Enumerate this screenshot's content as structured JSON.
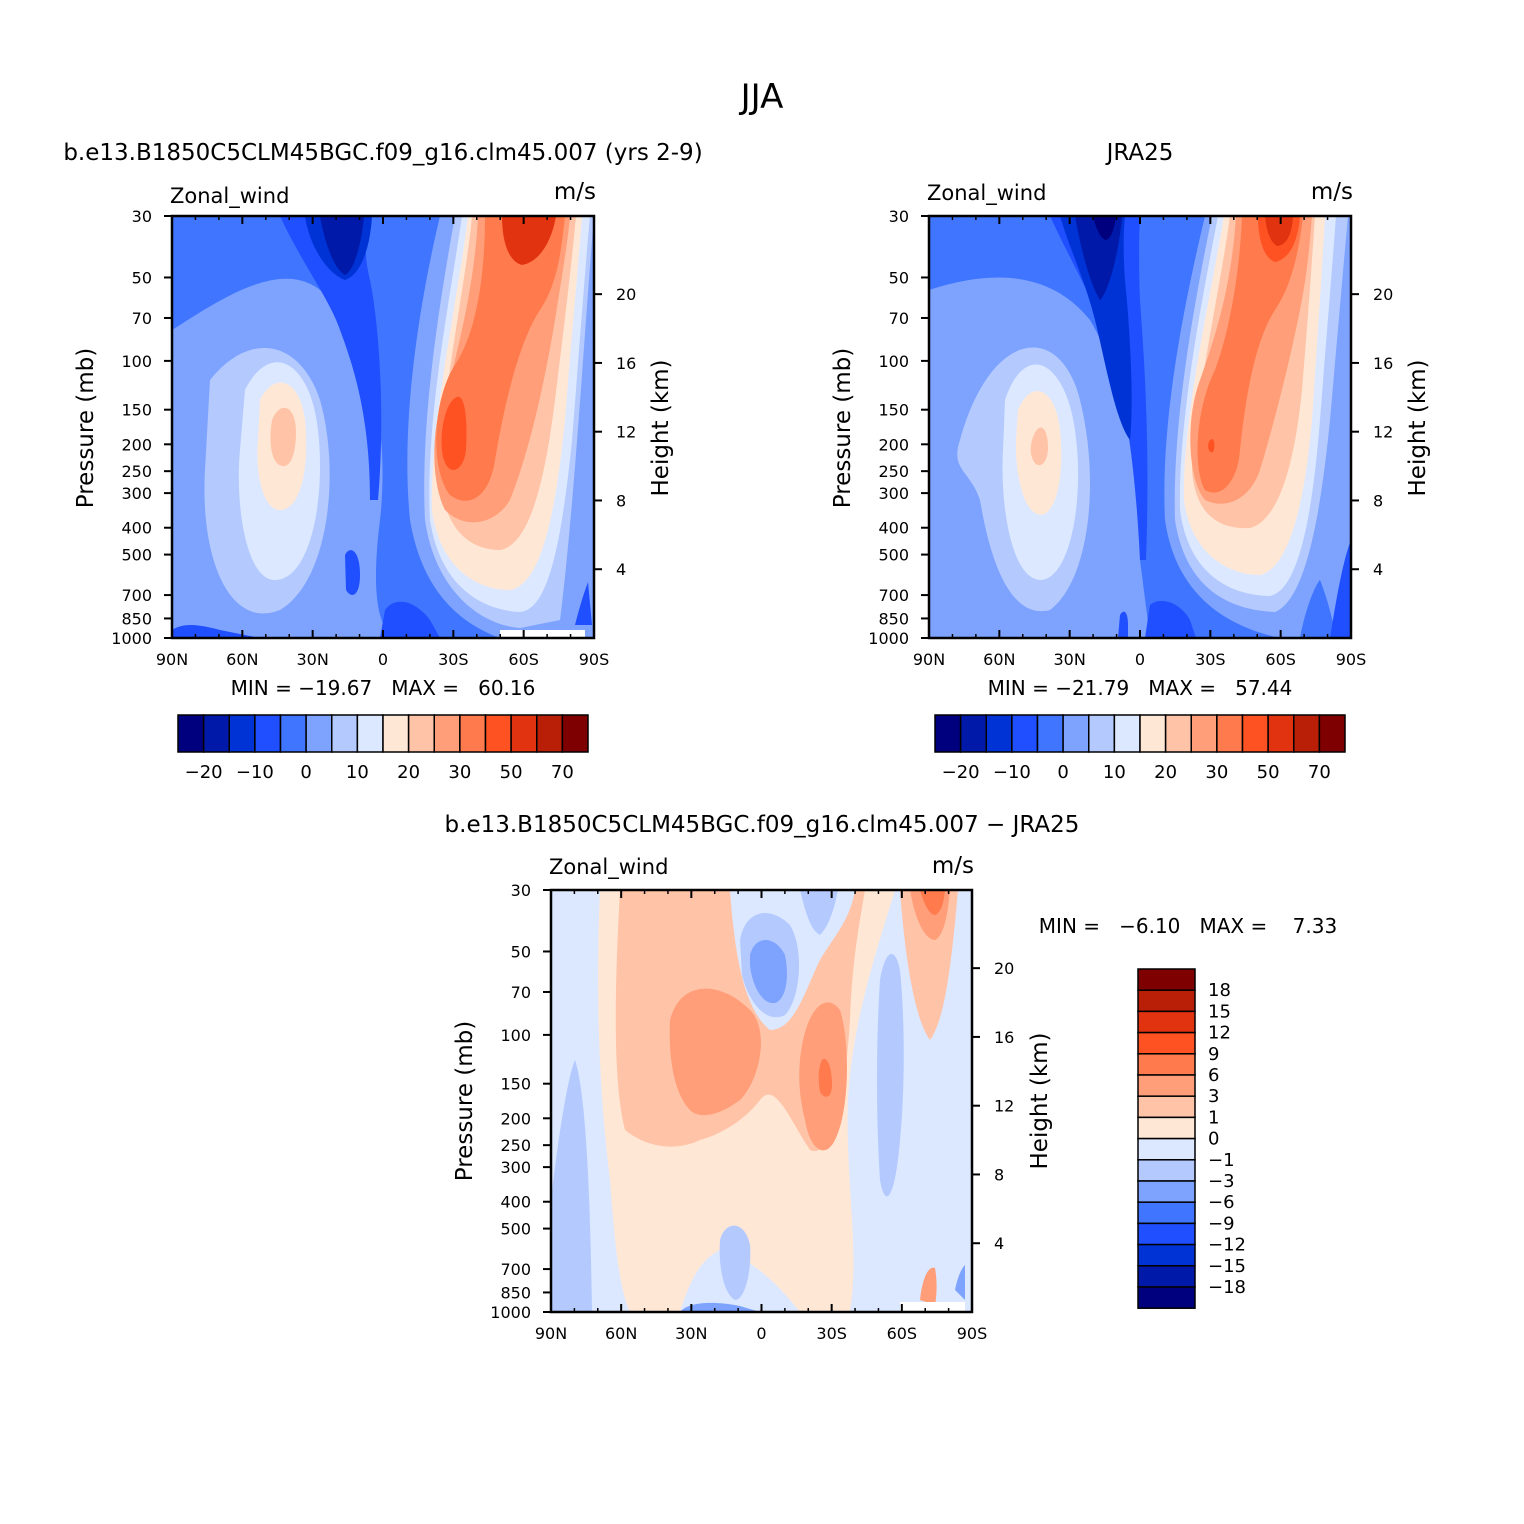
{
  "figure": {
    "title": "JJA",
    "colors": {
      "main_scale": [
        "#00007f",
        "#0019a8",
        "#0033d6",
        "#1f4fff",
        "#3f75ff",
        "#7ea3ff",
        "#b4caff",
        "#dce8ff",
        "#ffe7d6",
        "#ffc4a8",
        "#ff9e78",
        "#ff7a4c",
        "#ff5223",
        "#e23310",
        "#b81f06",
        "#7f0000"
      ],
      "diff_scale": [
        "#7f0000",
        "#b81f06",
        "#e23310",
        "#ff5223",
        "#ff7a4c",
        "#ff9e78",
        "#ffc4a8",
        "#ffe7d6",
        "#dce8ff",
        "#b4caff",
        "#7ea3ff",
        "#3f75ff",
        "#1f4fff",
        "#0033d6",
        "#0019a8",
        "#00007f"
      ]
    }
  },
  "chart_data": [
    {
      "type": "heatmap",
      "panel": "model",
      "title": "b.e13.B1850C5CLM45BGC.f09_g16.clm45.007 (yrs 2-9)",
      "variable": "Zonal_wind",
      "units": "m/s",
      "xlabel": "",
      "ylabel": "Pressure (mb)",
      "ylabel_right": "Height (km)",
      "x_ticks": [
        "90N",
        "60N",
        "30N",
        "0",
        "30S",
        "60S",
        "90S"
      ],
      "y_ticks": [
        "30",
        "50",
        "70",
        "100",
        "150",
        "200",
        "250",
        "300",
        "400",
        "500",
        "700",
        "850",
        "1000"
      ],
      "y_right_ticks": [
        "20",
        "16",
        "12",
        "8",
        "4"
      ],
      "stats_text": "MIN = −19.67   MAX =   60.16",
      "min": -19.67,
      "max": 60.16,
      "colorbar_labels": [
        "−20",
        "−10",
        "0",
        "10",
        "20",
        "30",
        "50",
        "70"
      ]
    },
    {
      "type": "heatmap",
      "panel": "obs",
      "title": "JRA25",
      "variable": "Zonal_wind",
      "units": "m/s",
      "xlabel": "",
      "ylabel": "Pressure (mb)",
      "ylabel_right": "Height (km)",
      "x_ticks": [
        "90N",
        "60N",
        "30N",
        "0",
        "30S",
        "60S",
        "90S"
      ],
      "y_ticks": [
        "30",
        "50",
        "70",
        "100",
        "150",
        "200",
        "250",
        "300",
        "400",
        "500",
        "700",
        "850",
        "1000"
      ],
      "y_right_ticks": [
        "20",
        "16",
        "12",
        "8",
        "4"
      ],
      "stats_text": "MIN = −21.79   MAX =   57.44",
      "min": -21.79,
      "max": 57.44,
      "colorbar_labels": [
        "−20",
        "−10",
        "0",
        "10",
        "20",
        "30",
        "50",
        "70"
      ]
    },
    {
      "type": "heatmap",
      "panel": "diff",
      "title": "b.e13.B1850C5CLM45BGC.f09_g16.clm45.007 − JRA25",
      "variable": "Zonal_wind",
      "units": "m/s",
      "xlabel": "",
      "ylabel": "Pressure (mb)",
      "ylabel_right": "Height (km)",
      "x_ticks": [
        "90N",
        "60N",
        "30N",
        "0",
        "30S",
        "60S",
        "90S"
      ],
      "y_ticks": [
        "30",
        "50",
        "70",
        "100",
        "150",
        "200",
        "250",
        "300",
        "400",
        "500",
        "700",
        "850",
        "1000"
      ],
      "y_right_ticks": [
        "20",
        "16",
        "12",
        "8",
        "4"
      ],
      "stats_text": "MIN =   −6.10   MAX =    7.33",
      "min": -6.1,
      "max": 7.33,
      "colorbar_labels": [
        "18",
        "15",
        "12",
        "9",
        "6",
        "3",
        "1",
        "0",
        "−1",
        "−3",
        "−6",
        "−9",
        "−12",
        "−15",
        "−18"
      ]
    }
  ]
}
